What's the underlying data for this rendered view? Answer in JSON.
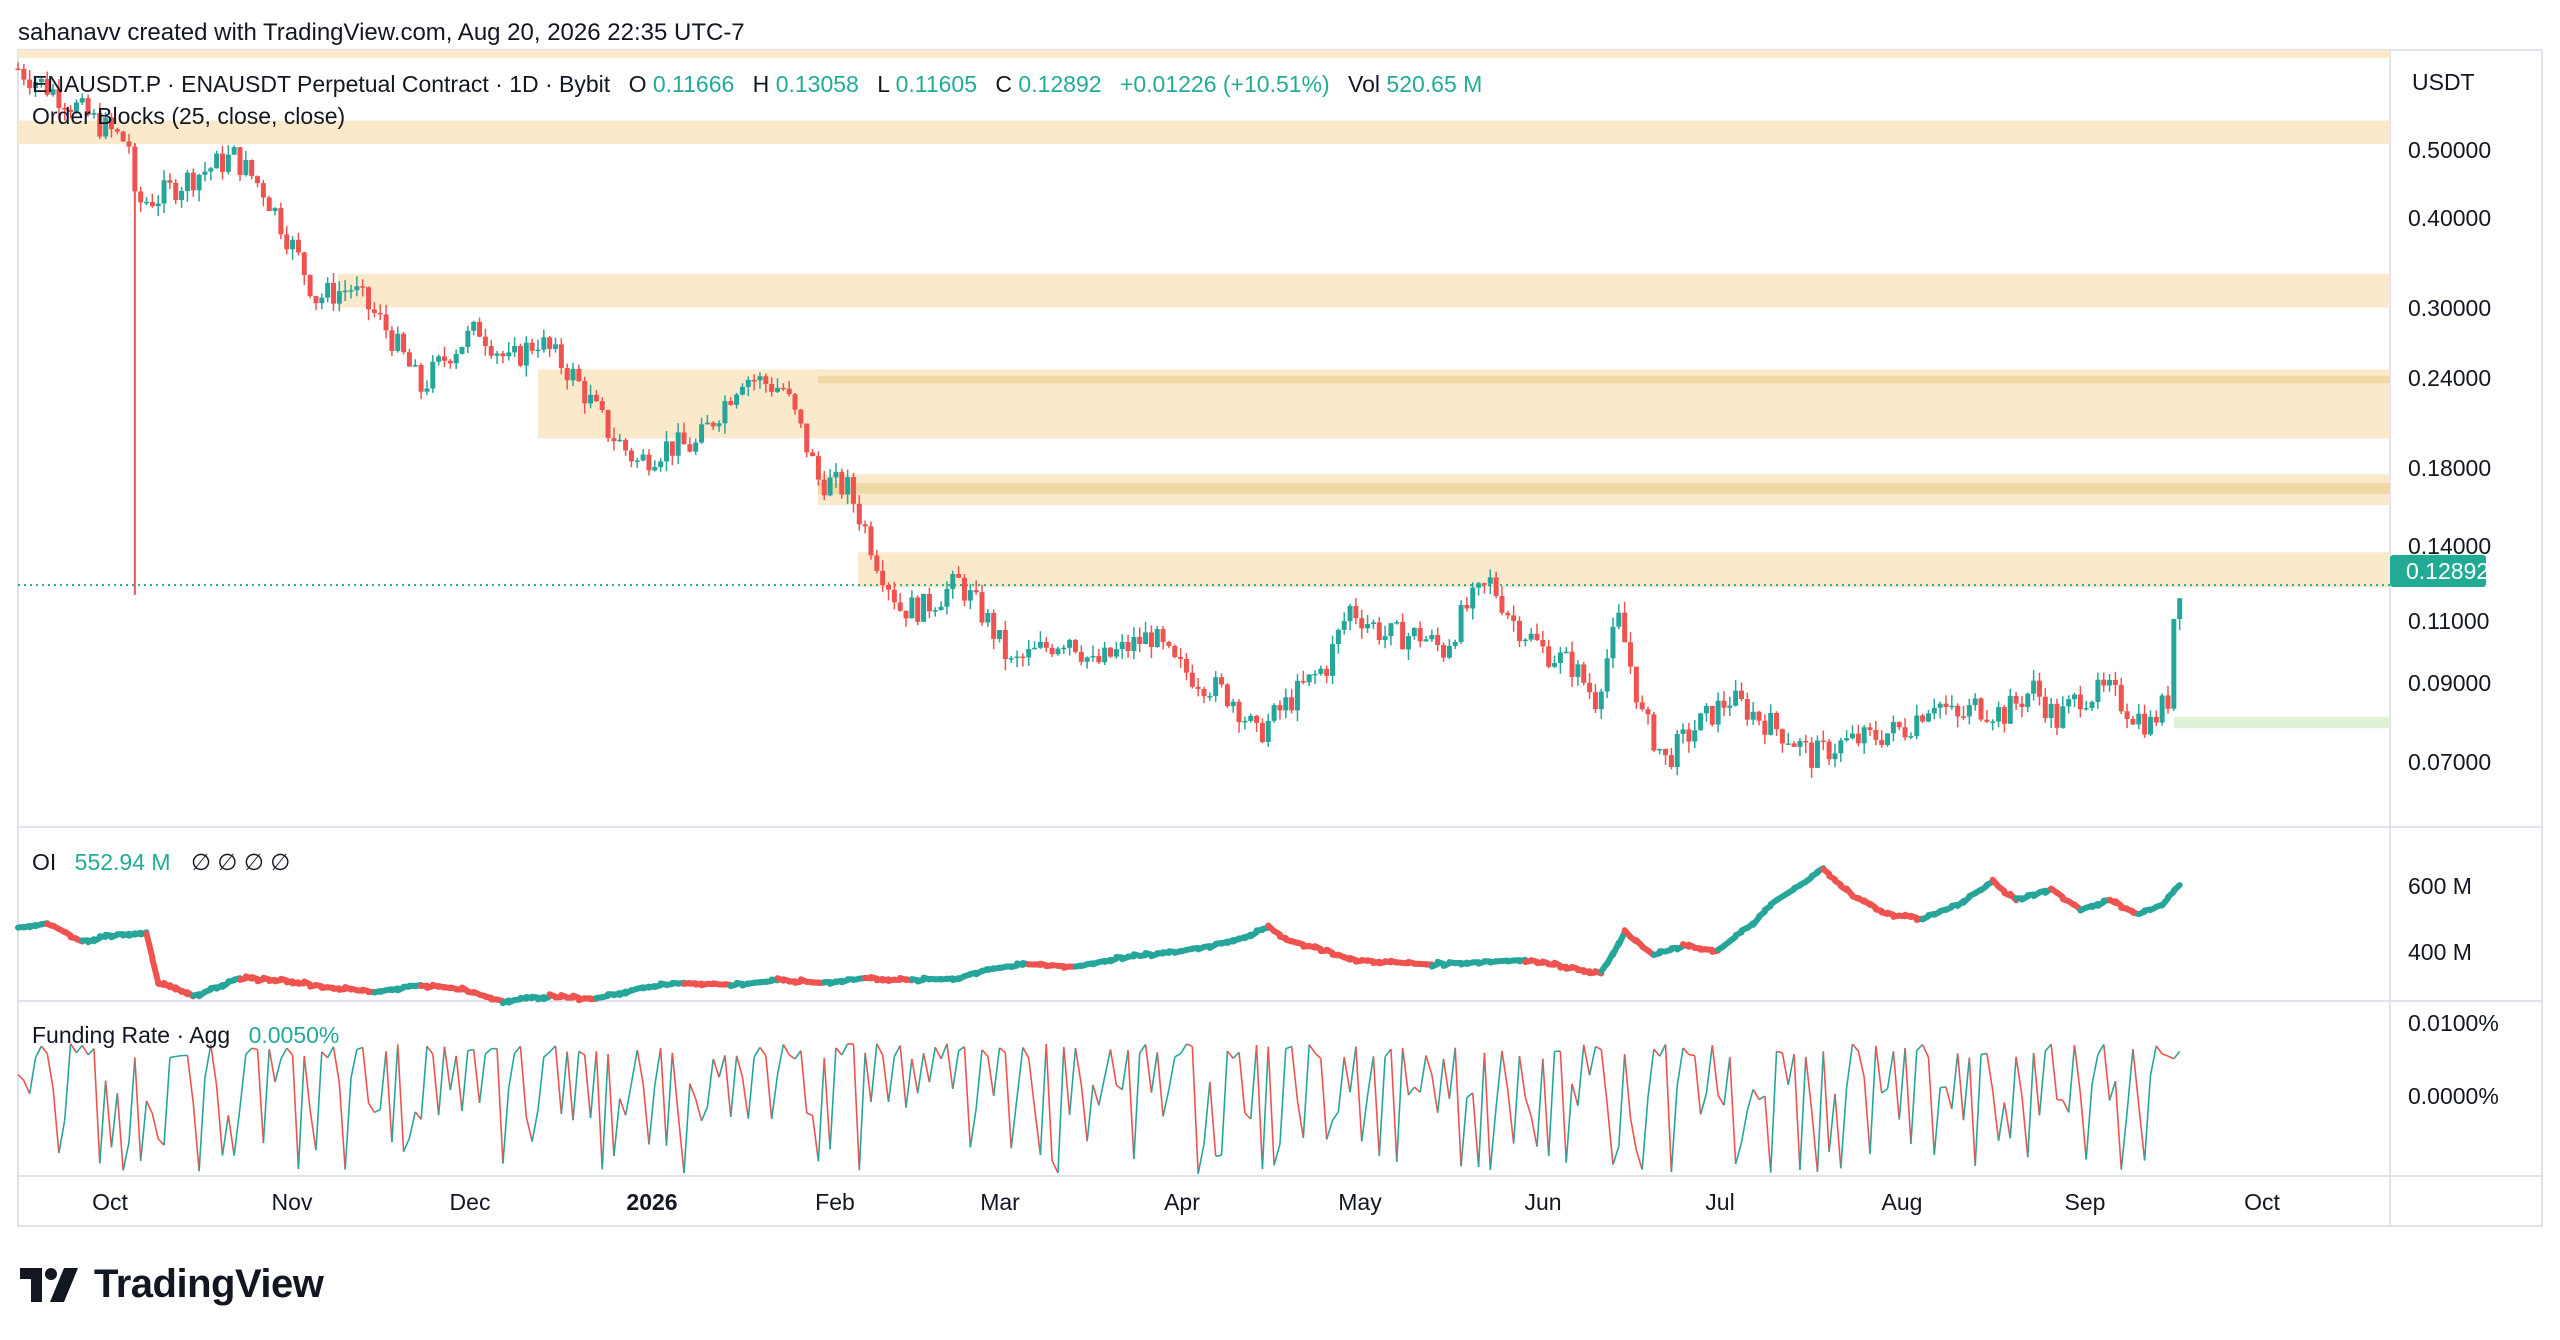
{
  "header": {
    "attribution": "sahanavv created with TradingView.com, Aug 20, 2026 22:35 UTC-7"
  },
  "legend": {
    "symbol": "ENAUSDT.P · ENAUSDT Perpetual Contract · 1D · Bybit",
    "o_label": "O",
    "o_value": "0.11666",
    "h_label": "H",
    "h_value": "0.13058",
    "l_label": "L",
    "l_value": "0.11605",
    "c_label": "C",
    "c_value": "0.12892",
    "change": "+0.01226 (+10.51%)",
    "vol_label": "Vol",
    "vol_value": "520.65 M",
    "indicator": "Order Blocks (25, close, close)"
  },
  "oi_legend": {
    "label": "OI",
    "value": "552.94 M",
    "extras": "∅ ∅ ∅ ∅"
  },
  "funding_legend": {
    "label": "Funding Rate · Agg",
    "value": "0.0050%"
  },
  "currency": "USDT",
  "last_price_tag": "0.12892",
  "price_ticks": [
    "0.50000",
    "0.40000",
    "0.30000",
    "0.24000",
    "0.18000",
    "0.14000",
    "0.11000",
    "0.09000",
    "0.07000"
  ],
  "oi_ticks": [
    "600 M",
    "400 M"
  ],
  "funding_ticks": [
    "0.0100%",
    "0.0000%"
  ],
  "time_ticks": [
    "Oct",
    "Nov",
    "Dec",
    "2026",
    "Feb",
    "Mar",
    "Apr",
    "May",
    "Jun",
    "Jul",
    "Aug",
    "Sep",
    "Oct"
  ],
  "brand": "TradingView",
  "colors": {
    "up": "#26a69a",
    "down": "#ef5350",
    "zone": "#fbe9cc",
    "zone_dark": "#f0d9a6",
    "bull_zone": "#dff2d8",
    "grid": "#e0e3eb",
    "text": "#131722",
    "accent": "#22ab94"
  },
  "chart_data": [
    {
      "type": "candlestick",
      "title": "ENAUSDT.P · ENAUSDT Perpetual Contract · 1D · Bybit",
      "x_range": [
        "2025-09-20",
        "2026-10-31"
      ],
      "x_axis_labels": [
        "Oct",
        "Nov",
        "Dec",
        "2026",
        "Feb",
        "Mar",
        "Apr",
        "May",
        "Jun",
        "Jul",
        "Aug",
        "Sep",
        "Oct"
      ],
      "scale": "log",
      "ylim": [
        0.06,
        0.7
      ],
      "last_close": 0.12892,
      "order_block_zones": [
        {
          "low": 0.52,
          "high": 0.56,
          "kind": "bearish"
        },
        {
          "low": 0.31,
          "high": 0.345,
          "kind": "bearish"
        },
        {
          "low": 0.205,
          "high": 0.255,
          "kind": "bearish"
        },
        {
          "low": 0.166,
          "high": 0.183,
          "kind": "bearish"
        },
        {
          "low": 0.128,
          "high": 0.143,
          "kind": "bearish"
        },
        {
          "low": 0.082,
          "high": 0.085,
          "kind": "bullish"
        }
      ],
      "path": [
        [
          "2025-09-20",
          0.66
        ],
        [
          "2025-09-28",
          0.6
        ],
        [
          "2025-10-03",
          0.56
        ],
        [
          "2025-10-09",
          0.52
        ],
        [
          "2025-10-10",
          0.43
        ],
        [
          "2025-10-14",
          0.44
        ],
        [
          "2025-10-20",
          0.47
        ],
        [
          "2025-10-27",
          0.5
        ],
        [
          "2025-11-01",
          0.45
        ],
        [
          "2025-11-05",
          0.39
        ],
        [
          "2025-11-10",
          0.32
        ],
        [
          "2025-11-16",
          0.33
        ],
        [
          "2025-11-22",
          0.29
        ],
        [
          "2025-11-28",
          0.24
        ],
        [
          "2025-12-03",
          0.27
        ],
        [
          "2025-12-08",
          0.29
        ],
        [
          "2025-12-13",
          0.26
        ],
        [
          "2025-12-18",
          0.28
        ],
        [
          "2025-12-24",
          0.25
        ],
        [
          "2025-12-30",
          0.21
        ],
        [
          "2026-01-04",
          0.19
        ],
        [
          "2026-01-09",
          0.2
        ],
        [
          "2026-01-14",
          0.2
        ],
        [
          "2026-01-19",
          0.23
        ],
        [
          "2026-01-22",
          0.25
        ],
        [
          "2026-01-29",
          0.24
        ],
        [
          "2026-02-04",
          0.18
        ],
        [
          "2026-02-09",
          0.175
        ],
        [
          "2026-02-14",
          0.14
        ],
        [
          "2026-02-18",
          0.12
        ],
        [
          "2026-02-22",
          0.12
        ],
        [
          "2026-02-28",
          0.13
        ],
        [
          "2026-03-05",
          0.115
        ],
        [
          "2026-03-09",
          0.1
        ],
        [
          "2026-03-14",
          0.105
        ],
        [
          "2026-03-19",
          0.11
        ],
        [
          "2026-03-23",
          0.1
        ],
        [
          "2026-03-28",
          0.105
        ],
        [
          "2026-04-02",
          0.11
        ],
        [
          "2026-04-06",
          0.1
        ],
        [
          "2026-04-11",
          0.095
        ],
        [
          "2026-04-16",
          0.09
        ],
        [
          "2026-04-20",
          0.08
        ],
        [
          "2026-04-26",
          0.09
        ],
        [
          "2026-05-02",
          0.1
        ],
        [
          "2026-05-06",
          0.12
        ],
        [
          "2026-05-12",
          0.11
        ],
        [
          "2026-05-18",
          0.11
        ],
        [
          "2026-05-22",
          0.105
        ],
        [
          "2026-05-26",
          0.12
        ],
        [
          "2026-05-30",
          0.13
        ],
        [
          "2026-06-03",
          0.115
        ],
        [
          "2026-06-08",
          0.105
        ],
        [
          "2026-06-13",
          0.1
        ],
        [
          "2026-06-17",
          0.09
        ],
        [
          "2026-06-21",
          0.115
        ],
        [
          "2026-06-25",
          0.085
        ],
        [
          "2026-06-29",
          0.074
        ],
        [
          "2026-07-04",
          0.082
        ],
        [
          "2026-07-10",
          0.09
        ],
        [
          "2026-07-15",
          0.085
        ],
        [
          "2026-07-20",
          0.08
        ],
        [
          "2026-07-24",
          0.075
        ],
        [
          "2026-07-29",
          0.078
        ],
        [
          "2026-08-04",
          0.08
        ],
        [
          "2026-08-09",
          0.082
        ],
        [
          "2026-08-14",
          0.09
        ],
        [
          "2026-08-18",
          0.084
        ],
        [
          "2026-08-21",
          0.088
        ],
        [
          "2026-08-26",
          0.086
        ],
        [
          "2026-08-31",
          0.093
        ],
        [
          "2026-09-04",
          0.084
        ],
        [
          "2026-09-08",
          0.091
        ],
        [
          "2026-09-13",
          0.092
        ],
        [
          "2026-09-17",
          0.086
        ],
        [
          "2026-09-20",
          0.083
        ],
        [
          "2026-09-23",
          0.09
        ],
        [
          "2026-09-24",
          0.117
        ],
        [
          "2026-09-25",
          0.129
        ]
      ]
    },
    {
      "type": "line",
      "title": "OI",
      "ylim": [
        300,
        680
      ],
      "last_value_millions": 552.94,
      "path": [
        [
          "2025-09-20",
          460
        ],
        [
          "2025-09-25",
          470
        ],
        [
          "2025-10-01",
          430
        ],
        [
          "2025-10-07",
          445
        ],
        [
          "2025-10-12",
          450
        ],
        [
          "2025-10-14",
          340
        ],
        [
          "2025-10-20",
          310
        ],
        [
          "2025-10-28",
          350
        ],
        [
          "2025-11-05",
          345
        ],
        [
          "2025-11-12",
          330
        ],
        [
          "2025-11-20",
          320
        ],
        [
          "2025-11-28",
          335
        ],
        [
          "2025-12-05",
          325
        ],
        [
          "2025-12-12",
          300
        ],
        [
          "2025-12-20",
          310
        ],
        [
          "2025-12-28",
          305
        ],
        [
          "2026-01-05",
          330
        ],
        [
          "2026-01-12",
          340
        ],
        [
          "2026-01-20",
          335
        ],
        [
          "2026-01-28",
          345
        ],
        [
          "2026-02-05",
          340
        ],
        [
          "2026-02-12",
          350
        ],
        [
          "2026-02-20",
          345
        ],
        [
          "2026-02-28",
          350
        ],
        [
          "2026-03-05",
          370
        ],
        [
          "2026-03-12",
          380
        ],
        [
          "2026-03-20",
          375
        ],
        [
          "2026-03-28",
          395
        ],
        [
          "2026-04-05",
          405
        ],
        [
          "2026-04-12",
          420
        ],
        [
          "2026-04-18",
          440
        ],
        [
          "2026-04-22",
          460
        ],
        [
          "2026-04-26",
          430
        ],
        [
          "2026-05-02",
          410
        ],
        [
          "2026-05-06",
          390
        ],
        [
          "2026-05-12",
          385
        ],
        [
          "2026-05-20",
          380
        ],
        [
          "2026-05-28",
          385
        ],
        [
          "2026-06-05",
          390
        ],
        [
          "2026-06-12",
          375
        ],
        [
          "2026-06-18",
          360
        ],
        [
          "2026-06-22",
          450
        ],
        [
          "2026-06-27",
          400
        ],
        [
          "2026-07-02",
          420
        ],
        [
          "2026-07-08",
          410
        ],
        [
          "2026-07-14",
          470
        ],
        [
          "2026-07-18",
          520
        ],
        [
          "2026-07-23",
          560
        ],
        [
          "2026-07-26",
          590
        ],
        [
          "2026-07-31",
          530
        ],
        [
          "2026-08-06",
          490
        ],
        [
          "2026-08-12",
          480
        ],
        [
          "2026-08-18",
          510
        ],
        [
          "2026-08-24",
          560
        ],
        [
          "2026-08-28",
          520
        ],
        [
          "2026-09-03",
          545
        ],
        [
          "2026-09-08",
          500
        ],
        [
          "2026-09-13",
          520
        ],
        [
          "2026-09-18",
          490
        ],
        [
          "2026-09-22",
          510
        ],
        [
          "2026-09-25",
          553
        ]
      ]
    },
    {
      "type": "line",
      "title": "Funding Rate · Agg",
      "ylim": [
        -0.0111,
        0.0115
      ],
      "last_value_pct": 0.005,
      "note_range": "oscillates between about -0.011% and +0.005% daily"
    }
  ]
}
